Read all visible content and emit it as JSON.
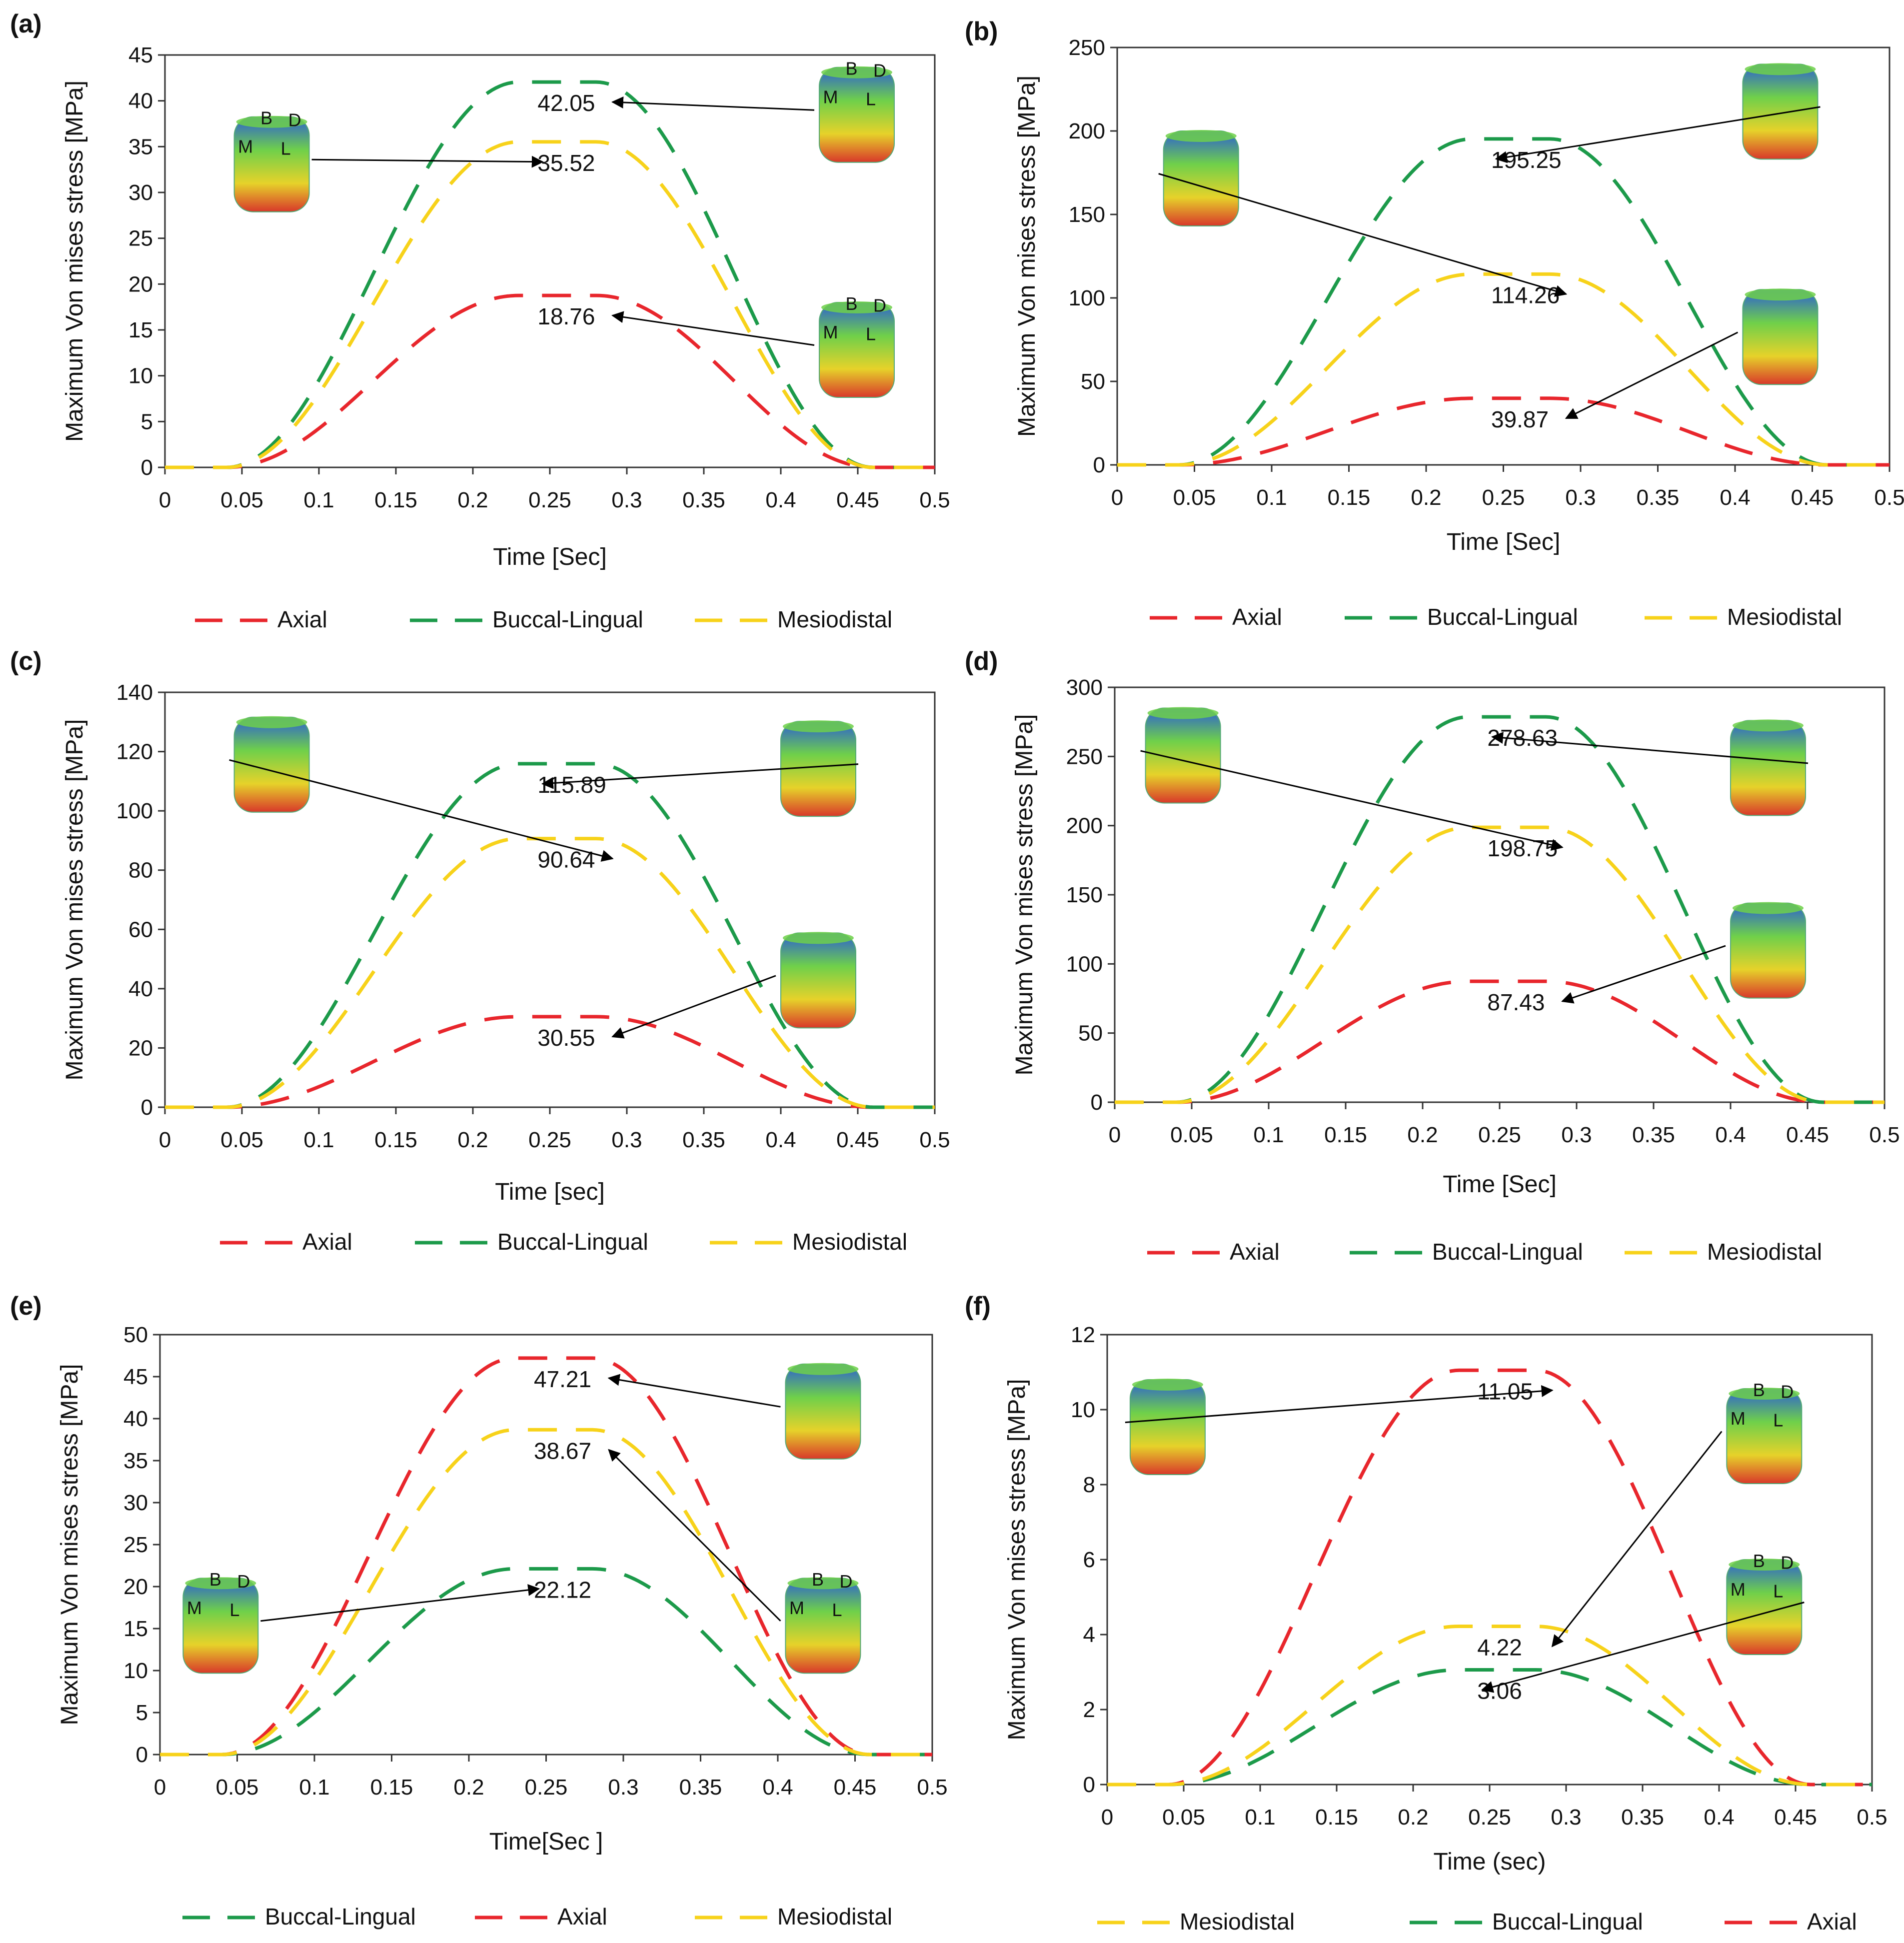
{
  "figure": {
    "colors": {
      "Axial": "#e8262c",
      "Buccal-Lingual": "#1c9a4a",
      "Mesiodistal": "#f7d21a",
      "axis": "#333333",
      "arrow": "#000000"
    },
    "icons": [
      "3d-stress-model-icon"
    ]
  },
  "chart_data": [
    {
      "id": "a",
      "panel_label": "(a)",
      "type": "line",
      "xlabel": "Time [Sec]",
      "ylabel": "Maximum Von mises stress [MPa]",
      "xlim": [
        0,
        0.5
      ],
      "ylim": [
        0,
        45
      ],
      "xticks": [
        0,
        0.05,
        0.1,
        0.15,
        0.2,
        0.25,
        0.3,
        0.35,
        0.4,
        0.45,
        0.5
      ],
      "yticks": [
        0,
        5,
        10,
        15,
        20,
        25,
        30,
        35,
        40,
        45
      ],
      "xtick_labels": [
        "0",
        "0.05",
        "0.1",
        "0.15",
        "0.2",
        "0.25",
        "0.3",
        "0.35",
        "0.4",
        "0.45",
        "0.5"
      ],
      "ytick_labels": [
        "0",
        "5",
        "10",
        "15",
        "20",
        "25",
        "30",
        "35",
        "40",
        "45"
      ],
      "series": [
        {
          "name": "Axial",
          "peak": 18.76
        },
        {
          "name": "Buccal-Lingual",
          "peak": 42.05
        },
        {
          "name": "Mesiodistal",
          "peak": 35.52
        }
      ],
      "legend_labels": [
        "Axial",
        "Buccal-Lingual",
        "Mesiodistal"
      ],
      "annotations": [
        {
          "text": "42.05",
          "series": "Buccal-Lingual",
          "model_labels": [
            "B",
            "D",
            "M",
            "L"
          ]
        },
        {
          "text": "35.52",
          "series": "Mesiodistal",
          "model_labels": [
            "B",
            "D",
            "M",
            "L"
          ]
        },
        {
          "text": "18.76",
          "series": "Axial",
          "model_labels": [
            "B",
            "D",
            "M",
            "L"
          ]
        }
      ]
    },
    {
      "id": "b",
      "panel_label": "(b)",
      "type": "line",
      "xlabel": "Time [Sec]",
      "ylabel": "Maximum Von mises stress [MPa]",
      "xlim": [
        0,
        0.5
      ],
      "ylim": [
        0,
        250
      ],
      "xticks": [
        0,
        0.05,
        0.1,
        0.15,
        0.2,
        0.25,
        0.3,
        0.35,
        0.4,
        0.45,
        0.5
      ],
      "yticks": [
        0,
        50,
        100,
        150,
        200,
        250
      ],
      "xtick_labels": [
        "0",
        "0.05",
        "0.1",
        "0.15",
        "0.2",
        "0.25",
        "0.3",
        "0.35",
        "0.4",
        "0.45",
        "0.5"
      ],
      "ytick_labels": [
        "0",
        "50",
        "100",
        "150",
        "200",
        "250"
      ],
      "series": [
        {
          "name": "Axial",
          "peak": 39.87
        },
        {
          "name": "Buccal-Lingual",
          "peak": 195.25
        },
        {
          "name": "Mesiodistal",
          "peak": 114.26
        }
      ],
      "legend_labels": [
        "Axial",
        "Buccal-Lingual",
        "Mesiodistal"
      ],
      "annotations": [
        {
          "text": "195.25",
          "series": "Buccal-Lingual"
        },
        {
          "text": "114.26",
          "series": "Mesiodistal"
        },
        {
          "text": "39.87",
          "series": "Axial"
        }
      ]
    },
    {
      "id": "c",
      "panel_label": "(c)",
      "type": "line",
      "xlabel": "Time [sec]",
      "ylabel": "Maximum Von mises stress [MPa]",
      "xlim": [
        0,
        0.5
      ],
      "ylim": [
        0,
        140
      ],
      "xticks": [
        0,
        0.05,
        0.1,
        0.15,
        0.2,
        0.25,
        0.3,
        0.35,
        0.4,
        0.45,
        0.5
      ],
      "yticks": [
        0,
        20,
        40,
        60,
        80,
        100,
        120,
        140
      ],
      "xtick_labels": [
        "0",
        "0.05",
        "0.1",
        "0.15",
        "0.2",
        "0.25",
        "0.3",
        "0.35",
        "0.4",
        "0.45",
        "0.5"
      ],
      "ytick_labels": [
        "0",
        "20",
        "40",
        "60",
        "80",
        "100",
        "120",
        "140"
      ],
      "series": [
        {
          "name": "Axial",
          "peak": 30.55
        },
        {
          "name": "Buccal-Lingual",
          "peak": 115.89
        },
        {
          "name": "Mesiodistal",
          "peak": 90.64
        }
      ],
      "legend_labels": [
        "Axial",
        "Buccal-Lingual",
        "Mesiodistal"
      ],
      "annotations": [
        {
          "text": "115.89",
          "series": "Buccal-Lingual"
        },
        {
          "text": "90.64",
          "series": "Mesiodistal"
        },
        {
          "text": "30.55",
          "series": "Axial"
        }
      ]
    },
    {
      "id": "d",
      "panel_label": "(d)",
      "type": "line",
      "xlabel": "Time [Sec]",
      "ylabel": "Maximum Von mises stress [MPa]",
      "xlim": [
        0,
        0.5
      ],
      "ylim": [
        0,
        300
      ],
      "xticks": [
        0,
        0.05,
        0.1,
        0.15,
        0.2,
        0.25,
        0.3,
        0.35,
        0.4,
        0.45,
        0.5
      ],
      "yticks": [
        0,
        50,
        100,
        150,
        200,
        250,
        300
      ],
      "xtick_labels": [
        "0",
        "0.05",
        "0.1",
        "0.15",
        "0.2",
        "0.25",
        "0.3",
        "0.35",
        "0.4",
        "0.45",
        "0.5"
      ],
      "ytick_labels": [
        "0",
        "50",
        "100",
        "150",
        "200",
        "250",
        "300"
      ],
      "series": [
        {
          "name": "Axial",
          "peak": 87.43
        },
        {
          "name": "Buccal-Lingual",
          "peak": 278.63
        },
        {
          "name": "Mesiodistal",
          "peak": 198.75
        }
      ],
      "legend_labels": [
        "Axial",
        "Buccal-Lingual",
        "Mesiodistal"
      ],
      "annotations": [
        {
          "text": "278.63",
          "series": "Buccal-Lingual"
        },
        {
          "text": "198.75",
          "series": "Mesiodistal"
        },
        {
          "text": "87.43",
          "series": "Axial"
        }
      ]
    },
    {
      "id": "e",
      "panel_label": "(e)",
      "type": "line",
      "xlabel": "Time[Sec ]",
      "ylabel": "Maximum Von mises stress [MPa]",
      "xlim": [
        0,
        0.5
      ],
      "ylim": [
        0,
        50
      ],
      "xticks": [
        0,
        0.05,
        0.1,
        0.15,
        0.2,
        0.25,
        0.3,
        0.35,
        0.4,
        0.45,
        0.5
      ],
      "yticks": [
        0,
        5,
        10,
        15,
        20,
        25,
        30,
        35,
        40,
        45,
        50
      ],
      "xtick_labels": [
        "0",
        "0.05",
        "0.1",
        "0.15",
        "0.2",
        "0.25",
        "0.3",
        "0.35",
        "0.4",
        "0.45",
        "0.5"
      ],
      "ytick_labels": [
        "0",
        "5",
        "10",
        "15",
        "20",
        "25",
        "30",
        "35",
        "40",
        "45",
        "50"
      ],
      "series": [
        {
          "name": "Axial",
          "peak": 47.21
        },
        {
          "name": "Buccal-Lingual",
          "peak": 22.12
        },
        {
          "name": "Mesiodistal",
          "peak": 38.67
        }
      ],
      "legend_labels": [
        "Buccal-Lingual",
        "Axial",
        "Mesiodistal"
      ],
      "annotations": [
        {
          "text": "47.21",
          "series": "Axial"
        },
        {
          "text": "38.67",
          "series": "Mesiodistal",
          "model_labels": [
            "B",
            "D",
            "M",
            "L"
          ]
        },
        {
          "text": "22.12",
          "series": "Buccal-Lingual",
          "model_labels": [
            "B",
            "D",
            "M",
            "L"
          ]
        }
      ]
    },
    {
      "id": "f",
      "panel_label": "(f)",
      "type": "line",
      "xlabel": "Time (sec)",
      "ylabel": "Maximum Von mises stress [MPa]",
      "xlim": [
        0,
        0.5
      ],
      "ylim": [
        0,
        12
      ],
      "xticks": [
        0,
        0.05,
        0.1,
        0.15,
        0.2,
        0.25,
        0.3,
        0.35,
        0.4,
        0.45,
        0.5
      ],
      "yticks": [
        0,
        2,
        4,
        6,
        8,
        10,
        12
      ],
      "xtick_labels": [
        "0",
        "0.05",
        "0.1",
        "0.15",
        "0.2",
        "0.25",
        "0.3",
        "0.35",
        "0.4",
        "0.45",
        "0.5"
      ],
      "ytick_labels": [
        "0",
        "2",
        "4",
        "6",
        "8",
        "10",
        "12"
      ],
      "series": [
        {
          "name": "Axial",
          "peak": 11.05
        },
        {
          "name": "Buccal-Lingual",
          "peak": 3.06
        },
        {
          "name": "Mesiodistal",
          "peak": 4.22
        }
      ],
      "legend_labels": [
        "Mesiodistal",
        "Buccal-Lingual",
        "Axial"
      ],
      "annotations": [
        {
          "text": "11.05",
          "series": "Axial"
        },
        {
          "text": "4.22",
          "series": "Mesiodistal",
          "model_labels": [
            "B",
            "D",
            "M",
            "L"
          ]
        },
        {
          "text": "3.06",
          "series": "Buccal-Lingual",
          "model_labels": [
            "B",
            "D",
            "M",
            "L"
          ]
        }
      ]
    }
  ]
}
